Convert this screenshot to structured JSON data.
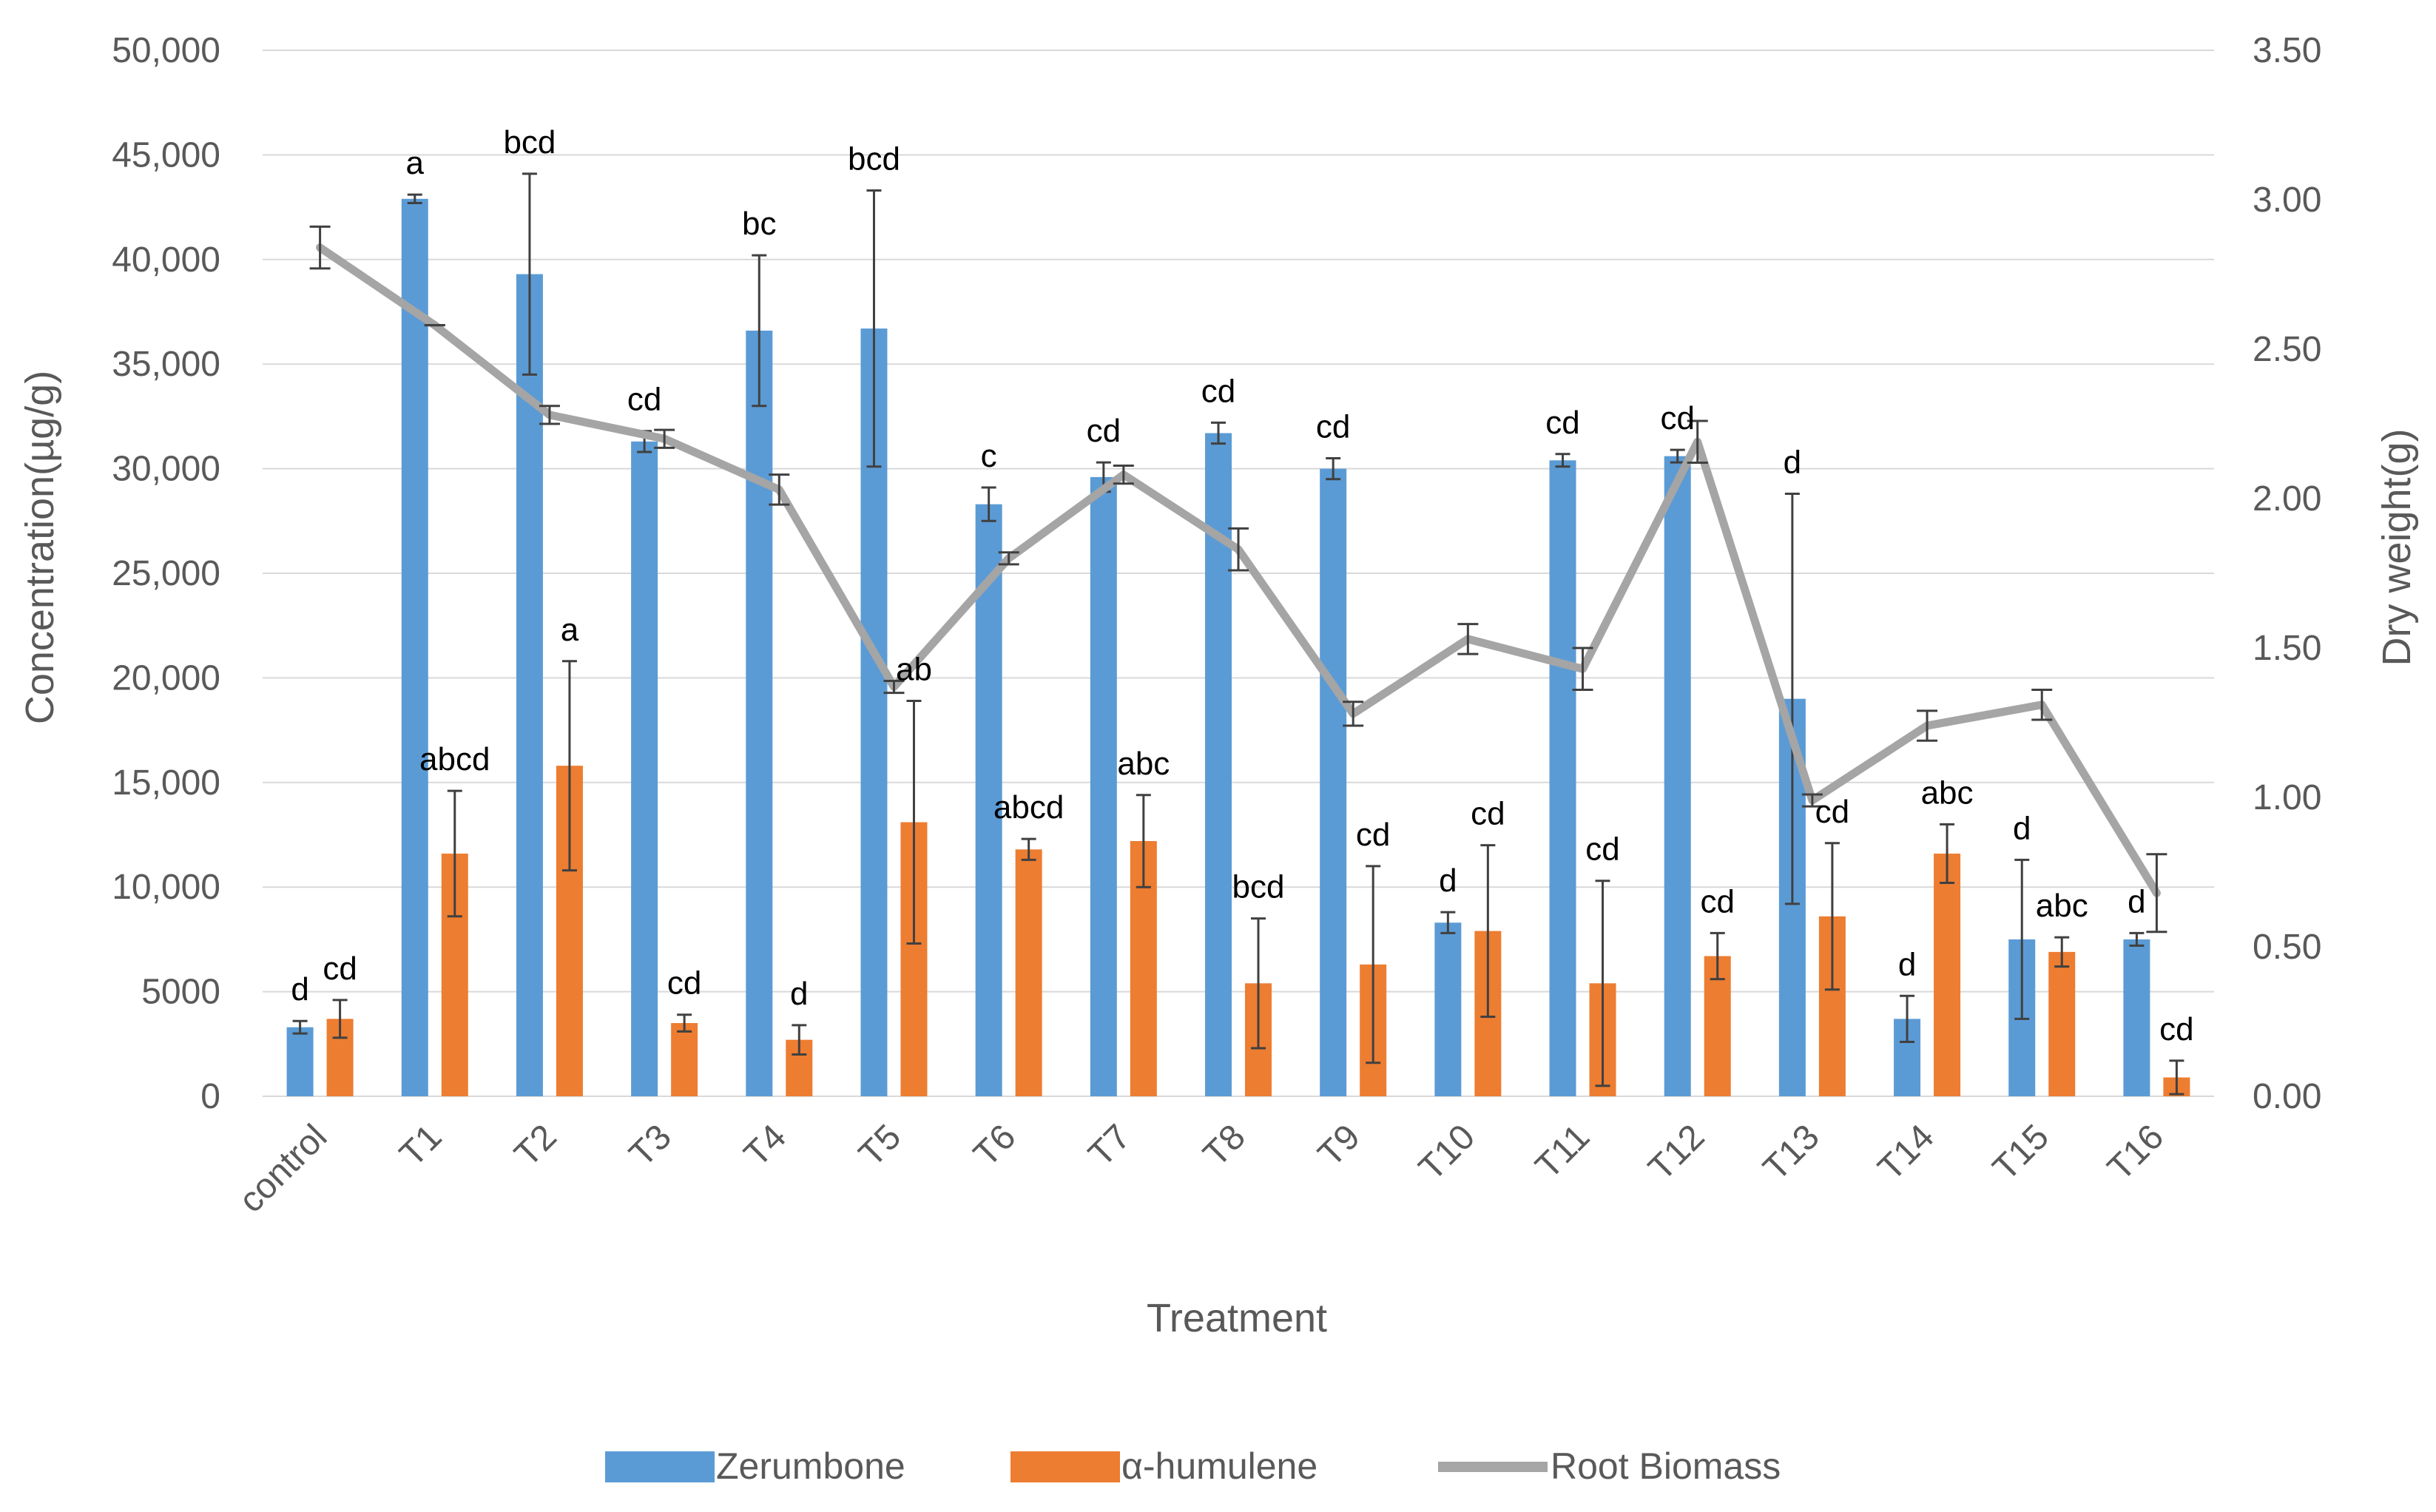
{
  "chart_data": {
    "type": "bar+line",
    "title": "",
    "xlabel": "Treatment",
    "ylabel_left": "Concentration(µg/g)",
    "ylabel_right": "Dry weight(g)",
    "ylim_left": [
      0,
      50000
    ],
    "ylim_right": [
      0,
      3.5
    ],
    "yticks_left": [
      "0",
      "5000",
      "10,000",
      "15,000",
      "20,000",
      "25,000",
      "30,000",
      "35,000",
      "40,000",
      "45,000",
      "50,000"
    ],
    "yticks_right": [
      "0.00",
      "0.50",
      "1.00",
      "1.50",
      "2.00",
      "2.50",
      "3.00",
      "3.50"
    ],
    "grid": true,
    "legend_position": "bottom",
    "categories": [
      "control",
      "T1",
      "T2",
      "T3",
      "T4",
      "T5",
      "T6",
      "T7",
      "T8",
      "T9",
      "T10",
      "T11",
      "T12",
      "T13",
      "T14",
      "T15",
      "T16"
    ],
    "series": [
      {
        "name": "Zerumbone",
        "kind": "bar",
        "axis": "left",
        "color": "#5b9bd5",
        "values": [
          3300,
          42900,
          39300,
          31300,
          36600,
          36700,
          28300,
          29600,
          31700,
          30000,
          8300,
          30400,
          30600,
          19000,
          3700,
          7500,
          7500
        ],
        "errors": [
          300,
          200,
          4800,
          500,
          3600,
          6600,
          800,
          700,
          500,
          500,
          500,
          300,
          300,
          9800,
          1100,
          3800,
          300
        ],
        "labels": [
          "d",
          "a",
          "bcd",
          "cd",
          "bc",
          "bcd",
          "c",
          "cd",
          "cd",
          "cd",
          "d",
          "cd",
          "cd",
          "d",
          "d",
          "d",
          "d"
        ]
      },
      {
        "name": "α-humulene",
        "kind": "bar",
        "axis": "left",
        "color": "#ed7d31",
        "values": [
          3700,
          11600,
          15800,
          3500,
          2700,
          13100,
          11800,
          12200,
          5400,
          6300,
          7900,
          5400,
          6700,
          8600,
          11600,
          6900,
          900
        ],
        "errors": [
          900,
          3000,
          5000,
          400,
          700,
          5800,
          500,
          2200,
          3100,
          4700,
          4100,
          4900,
          1100,
          3500,
          1400,
          700,
          800
        ],
        "labels": [
          "cd",
          "abcd",
          "a",
          "cd",
          "d",
          "ab",
          "abcd",
          "abc",
          "bcd",
          "cd",
          "cd",
          "cd",
          "cd",
          "cd",
          "abc",
          "abc",
          "cd"
        ]
      },
      {
        "name": "Root Biomass",
        "kind": "line",
        "axis": "right",
        "color": "#a5a5a5",
        "values": [
          2.84,
          2.58,
          2.28,
          2.2,
          2.03,
          1.37,
          1.8,
          2.08,
          1.83,
          1.28,
          1.53,
          1.43,
          2.19,
          0.99,
          1.24,
          1.31,
          0.68
        ],
        "errors": [
          0.07,
          0.0,
          0.03,
          0.03,
          0.05,
          0.02,
          0.02,
          0.03,
          0.07,
          0.04,
          0.05,
          0.07,
          0.07,
          0.02,
          0.05,
          0.05,
          0.13
        ]
      }
    ]
  }
}
